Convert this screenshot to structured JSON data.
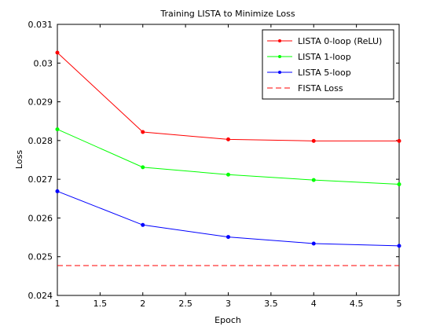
{
  "chart_data": {
    "type": "line",
    "title": "Training LISTA to Minimize Loss",
    "xlabel": "Epoch",
    "ylabel": "Loss",
    "xlim": [
      1,
      5
    ],
    "ylim": [
      0.024,
      0.031
    ],
    "xticks": [
      "1",
      "1.5",
      "2",
      "2.5",
      "3",
      "3.5",
      "4",
      "4.5",
      "5"
    ],
    "yticks": [
      "0.024",
      "0.025",
      "0.026",
      "0.027",
      "0.028",
      "0.029",
      "0.03",
      "0.031"
    ],
    "grid": false,
    "legend_position": "top-right",
    "x": [
      1,
      2,
      3,
      4,
      5
    ],
    "series": [
      {
        "name": "LISTA 0-loop (ReLU)",
        "color": "#ff0000",
        "style": "solid-marker",
        "values": [
          0.03027,
          0.02822,
          0.02803,
          0.02799,
          0.02799
        ]
      },
      {
        "name": "LISTA 1-loop",
        "color": "#00ff00",
        "style": "solid-marker",
        "values": [
          0.02829,
          0.02731,
          0.02712,
          0.02698,
          0.02687
        ]
      },
      {
        "name": "LISTA 5-loop",
        "color": "#0000ff",
        "style": "solid-marker",
        "values": [
          0.02669,
          0.02582,
          0.02551,
          0.02534,
          0.02528
        ]
      },
      {
        "name": "FISTA Loss",
        "color": "#ff0000",
        "style": "dashed",
        "values": [
          0.02477,
          0.02477,
          0.02477,
          0.02477,
          0.02477
        ]
      }
    ]
  }
}
